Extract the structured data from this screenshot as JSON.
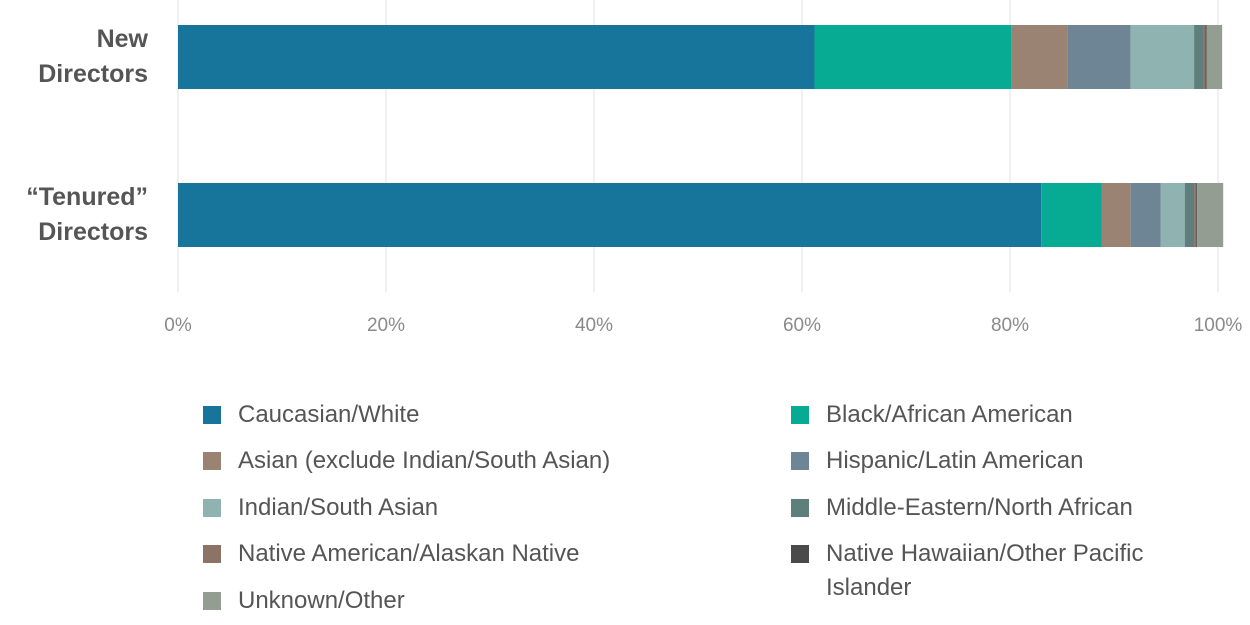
{
  "chart_data": {
    "type": "stacked-bar-horizontal",
    "categories": [
      "New Directors",
      "“Tenured” Directors"
    ],
    "xlim": [
      0,
      100
    ],
    "xticks": [
      {
        "value": 0,
        "label": "0%"
      },
      {
        "value": 20,
        "label": "20%"
      },
      {
        "value": 40,
        "label": "40%"
      },
      {
        "value": 60,
        "label": "60%"
      },
      {
        "value": 80,
        "label": "80%"
      },
      {
        "value": 100,
        "label": "100%"
      }
    ],
    "grid": true,
    "series": [
      {
        "name": "Caucasian/White",
        "color": "#17759b",
        "values": [
          61.2,
          83.0
        ]
      },
      {
        "name": "Black/African American",
        "color": "#07ab93",
        "values": [
          18.9,
          5.8
        ]
      },
      {
        "name": "Asian (exclude Indian/South Asian)",
        "color": "#9b8373",
        "values": [
          5.4,
          2.8
        ]
      },
      {
        "name": "Hispanic/Latin American",
        "color": "#6d8595",
        "values": [
          6.1,
          2.9
        ]
      },
      {
        "name": "Indian/South Asian",
        "color": "#8fb3b1",
        "values": [
          6.1,
          2.3
        ]
      },
      {
        "name": "Middle-Eastern/North African",
        "color": "#5f7f7c",
        "values": [
          0.9,
          0.9
        ]
      },
      {
        "name": "Native American/Alaskan Native",
        "color": "#8b7366",
        "values": [
          0.2,
          0.2
        ]
      },
      {
        "name": "Native Hawaiian/Other Pacific Islander",
        "color": "#4a4a4a",
        "values": [
          0.1,
          0.1
        ]
      },
      {
        "name": "Unknown/Other",
        "color": "#939d91",
        "values": [
          1.5,
          2.5
        ]
      }
    ]
  }
}
